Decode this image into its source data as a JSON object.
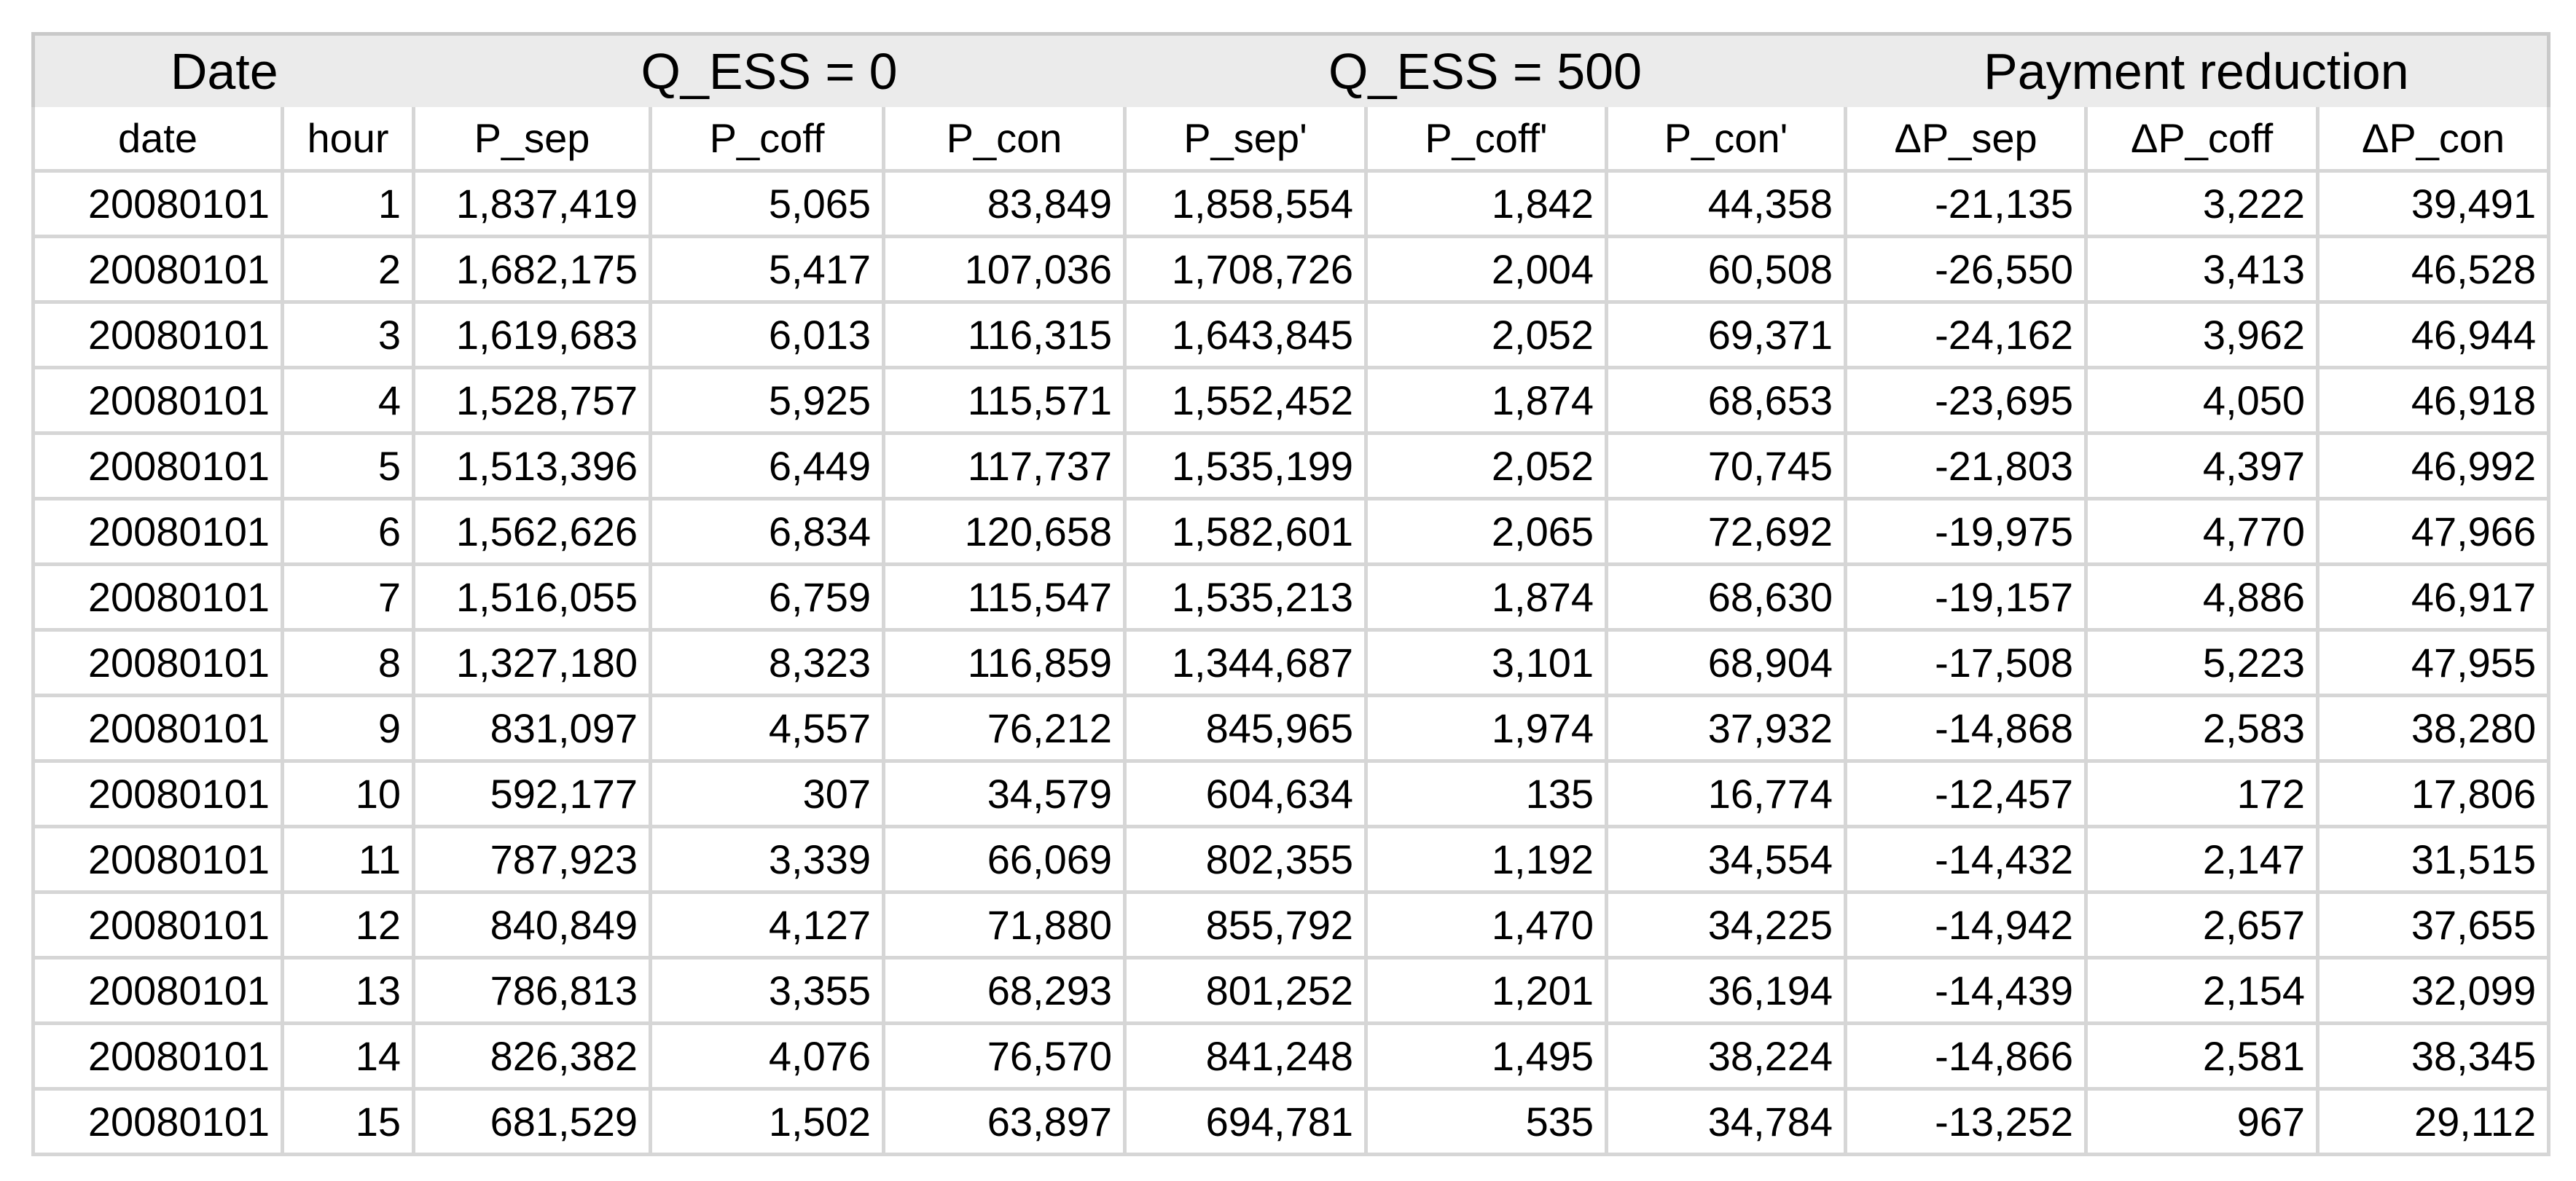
{
  "table": {
    "group_headers": [
      {
        "label": "Date",
        "span": 2
      },
      {
        "label": "Q_ESS = 0",
        "span": 3
      },
      {
        "label": "Q_ESS = 500",
        "span": 3
      },
      {
        "label": "Payment reduction",
        "span": 3
      }
    ],
    "column_headers": [
      "date",
      "hour",
      "P_sep",
      "P_coff",
      "P_con",
      "P_sep'",
      "P_coff'",
      "P_con'",
      "ΔP_sep",
      "ΔP_coff",
      "ΔP_con"
    ],
    "rows": [
      [
        "20080101",
        "1",
        "1,837,419",
        "5,065",
        "83,849",
        "1,858,554",
        "1,842",
        "44,358",
        "-21,135",
        "3,222",
        "39,491"
      ],
      [
        "20080101",
        "2",
        "1,682,175",
        "5,417",
        "107,036",
        "1,708,726",
        "2,004",
        "60,508",
        "-26,550",
        "3,413",
        "46,528"
      ],
      [
        "20080101",
        "3",
        "1,619,683",
        "6,013",
        "116,315",
        "1,643,845",
        "2,052",
        "69,371",
        "-24,162",
        "3,962",
        "46,944"
      ],
      [
        "20080101",
        "4",
        "1,528,757",
        "5,925",
        "115,571",
        "1,552,452",
        "1,874",
        "68,653",
        "-23,695",
        "4,050",
        "46,918"
      ],
      [
        "20080101",
        "5",
        "1,513,396",
        "6,449",
        "117,737",
        "1,535,199",
        "2,052",
        "70,745",
        "-21,803",
        "4,397",
        "46,992"
      ],
      [
        "20080101",
        "6",
        "1,562,626",
        "6,834",
        "120,658",
        "1,582,601",
        "2,065",
        "72,692",
        "-19,975",
        "4,770",
        "47,966"
      ],
      [
        "20080101",
        "7",
        "1,516,055",
        "6,759",
        "115,547",
        "1,535,213",
        "1,874",
        "68,630",
        "-19,157",
        "4,886",
        "46,917"
      ],
      [
        "20080101",
        "8",
        "1,327,180",
        "8,323",
        "116,859",
        "1,344,687",
        "3,101",
        "68,904",
        "-17,508",
        "5,223",
        "47,955"
      ],
      [
        "20080101",
        "9",
        "831,097",
        "4,557",
        "76,212",
        "845,965",
        "1,974",
        "37,932",
        "-14,868",
        "2,583",
        "38,280"
      ],
      [
        "20080101",
        "10",
        "592,177",
        "307",
        "34,579",
        "604,634",
        "135",
        "16,774",
        "-12,457",
        "172",
        "17,806"
      ],
      [
        "20080101",
        "11",
        "787,923",
        "3,339",
        "66,069",
        "802,355",
        "1,192",
        "34,554",
        "-14,432",
        "2,147",
        "31,515"
      ],
      [
        "20080101",
        "12",
        "840,849",
        "4,127",
        "71,880",
        "855,792",
        "1,470",
        "34,225",
        "-14,942",
        "2,657",
        "37,655"
      ],
      [
        "20080101",
        "13",
        "786,813",
        "3,355",
        "68,293",
        "801,252",
        "1,201",
        "36,194",
        "-14,439",
        "2,154",
        "32,099"
      ],
      [
        "20080101",
        "14",
        "826,382",
        "4,076",
        "76,570",
        "841,248",
        "1,495",
        "38,224",
        "-14,866",
        "2,581",
        "38,345"
      ],
      [
        "20080101",
        "15",
        "681,529",
        "1,502",
        "63,897",
        "694,781",
        "535",
        "34,784",
        "-13,252",
        "967",
        "29,112"
      ]
    ]
  },
  "colors": {
    "group_header_bg": "#ebebeb",
    "grid_line": "#d6d6d6",
    "outer_border": "#c9c9c9",
    "cell_bg": "#ffffff",
    "text": "#000000"
  }
}
